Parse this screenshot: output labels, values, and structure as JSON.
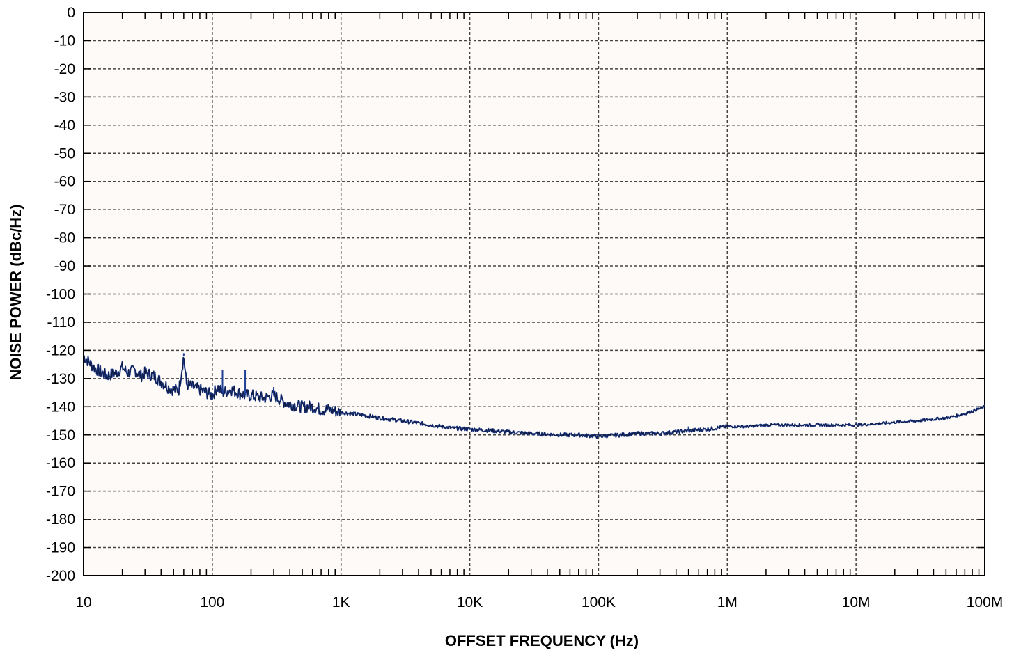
{
  "chart_data": {
    "type": "line",
    "title": "",
    "xlabel": "OFFSET FREQUENCY (Hz)",
    "ylabel": "NOISE POWER (dBc/Hz)",
    "x_scale": "log",
    "xlim": [
      10,
      100000000
    ],
    "ylim": [
      -200,
      0
    ],
    "grid": true,
    "x_ticks": [
      10,
      100,
      1000,
      10000,
      100000,
      1000000,
      10000000,
      100000000
    ],
    "x_tick_labels": [
      "10",
      "100",
      "1K",
      "10K",
      "100K",
      "1M",
      "10M",
      "100M"
    ],
    "y_ticks": [
      0,
      -10,
      -20,
      -30,
      -40,
      -50,
      -60,
      -70,
      -80,
      -90,
      -100,
      -110,
      -120,
      -130,
      -140,
      -150,
      -160,
      -170,
      -180,
      -190,
      -200
    ],
    "y_tick_labels": [
      "0",
      "-10",
      "-20",
      "-30",
      "-40",
      "-50",
      "-60",
      "-70",
      "-80",
      "-90",
      "-100",
      "-110",
      "-120",
      "-130",
      "-140",
      "-150",
      "-160",
      "-170",
      "-180",
      "-190",
      "-200"
    ],
    "colors": {
      "trace": "#1f3f95",
      "trace_dark": "#101838",
      "grid": "#444444",
      "background": "#fdfaf7"
    },
    "series": [
      {
        "x": [
          10,
          12,
          15,
          18,
          20,
          22,
          25,
          28,
          30,
          35,
          40,
          45,
          50,
          55,
          60,
          63,
          70,
          80,
          90,
          100,
          110,
          120,
          140,
          160,
          180,
          200,
          250,
          300,
          350,
          400,
          500,
          600,
          700,
          800,
          1000,
          1500,
          2000,
          3000,
          5000,
          7000,
          10000,
          15000,
          20000,
          30000,
          50000,
          70000,
          100000,
          150000,
          200000,
          300000,
          500000,
          700000,
          1000000,
          1500000,
          2000000,
          3000000,
          5000000,
          7000000,
          10000000,
          15000000,
          20000000,
          30000000,
          50000000,
          70000000,
          100000000
        ],
        "y": [
          -122,
          -126,
          -129,
          -128,
          -126,
          -128,
          -127,
          -129,
          -128,
          -129,
          -131,
          -133,
          -134,
          -134,
          -122,
          -132,
          -133,
          -134,
          -135,
          -136,
          -133,
          -135,
          -134,
          -135,
          -136,
          -136,
          -137,
          -136,
          -138,
          -139,
          -140,
          -140,
          -141,
          -141,
          -142,
          -143,
          -144,
          -145,
          -146.5,
          -147.5,
          -148,
          -148.5,
          -149,
          -149.5,
          -150,
          -150,
          -150.5,
          -150,
          -149.5,
          -149.5,
          -148.5,
          -148,
          -147,
          -147,
          -146.5,
          -146.5,
          -146.5,
          -146.5,
          -146.5,
          -146,
          -145.5,
          -145,
          -144,
          -142.5,
          -140
        ]
      }
    ],
    "spurs": [
      {
        "x": 60,
        "y": -121
      },
      {
        "x": 120,
        "y": -127
      },
      {
        "x": 180,
        "y": -127
      },
      {
        "x": 300,
        "y": -133
      },
      {
        "x": 500000,
        "y": -147
      }
    ]
  }
}
